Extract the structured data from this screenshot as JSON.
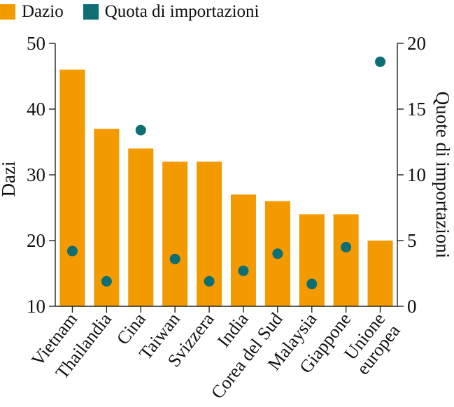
{
  "chart_data": {
    "type": "bar",
    "title": "",
    "categories": [
      "Vietnam",
      "Thailandia",
      "Cina",
      "Taiwan",
      "Svizzera",
      "India",
      "Corea del Sud",
      "Malaysia",
      "Giappone",
      "Unione europea"
    ],
    "category_lines": [
      [
        "Vietnam"
      ],
      [
        "Thailandia"
      ],
      [
        "Cina"
      ],
      [
        "Taiwan"
      ],
      [
        "Svizzera"
      ],
      [
        "India"
      ],
      [
        "Corea del Sud"
      ],
      [
        "Malaysia"
      ],
      [
        "Giappone"
      ],
      [
        "Unione",
        "europea"
      ]
    ],
    "series": [
      {
        "name": "Dazio",
        "kind": "bar",
        "axis": "left",
        "color": "#f29a00",
        "values": [
          46,
          37,
          34,
          32,
          32,
          27,
          26,
          24,
          24,
          20
        ]
      },
      {
        "name": "Quota di importazioni",
        "kind": "scatter",
        "axis": "right",
        "color": "#0d6e73",
        "values": [
          4.2,
          1.9,
          13.4,
          3.6,
          1.9,
          2.7,
          4.0,
          1.7,
          4.5,
          18.6
        ]
      }
    ],
    "ylabel": "Dazi",
    "y2label": "Quote di importazioni",
    "ylim": [
      10,
      50
    ],
    "y2lim": [
      0,
      20
    ],
    "yticks": [
      10,
      20,
      30,
      40,
      50
    ],
    "y2ticks": [
      0,
      5,
      10,
      15,
      20
    ],
    "grid": false,
    "legend_position": "top-left"
  }
}
